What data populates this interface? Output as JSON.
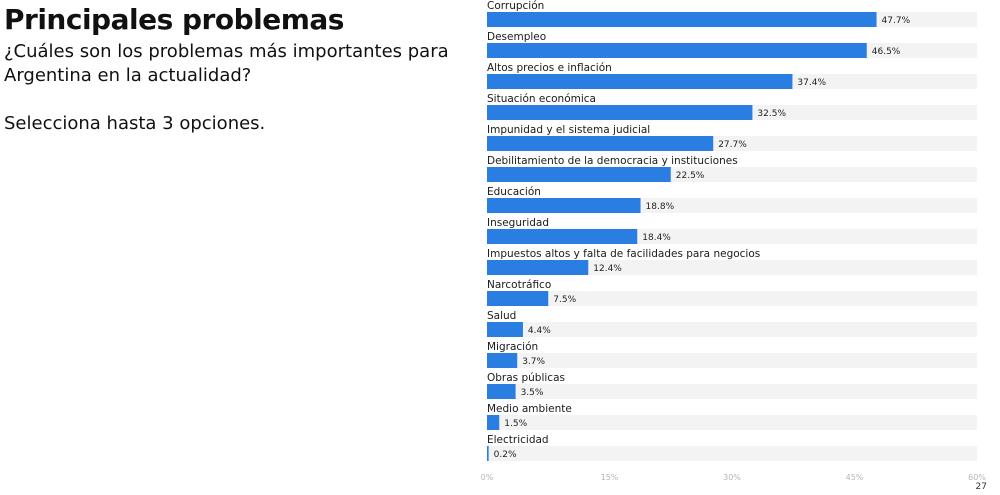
{
  "slide": {
    "title": "Principales problemas",
    "question": "¿Cuáles son los problemas más importantes para Argentina en la actualidad?",
    "instruction": "Selecciona hasta 3 opciones.",
    "page_number": "27"
  },
  "colors": {
    "bar": "#2a7de1",
    "track": "#f3f3f3"
  },
  "chart_data": {
    "type": "bar",
    "orientation": "horizontal",
    "categories": [
      "Corrupción",
      "Desempleo",
      "Altos precios e inflación",
      "Situación económica",
      "Impunidad y el sistema judicial",
      "Debilitamiento de la democracia y instituciones",
      "Educación",
      "Inseguridad",
      "Impuestos altos y falta de facilidades para negocios",
      "Narcotráfico",
      "Salud",
      "Migración",
      "Obras públicas",
      "Medio ambiente",
      "Electricidad"
    ],
    "values": [
      47.7,
      46.5,
      37.4,
      32.5,
      27.7,
      22.5,
      18.8,
      18.4,
      12.4,
      7.5,
      4.4,
      3.7,
      3.5,
      1.5,
      0.2
    ],
    "value_labels": [
      "47.7%",
      "46.5%",
      "37.4%",
      "32.5%",
      "27.7%",
      "22.5%",
      "18.8%",
      "18.4%",
      "12.4%",
      "7.5%",
      "4.4%",
      "3.7%",
      "3.5%",
      "1.5%",
      "0.2%"
    ],
    "xlim": [
      0,
      60
    ],
    "xticks": [
      0,
      15,
      30,
      45,
      60
    ],
    "xtick_labels": [
      "0%",
      "15%",
      "30%",
      "45%",
      "60%"
    ],
    "grid": false
  }
}
